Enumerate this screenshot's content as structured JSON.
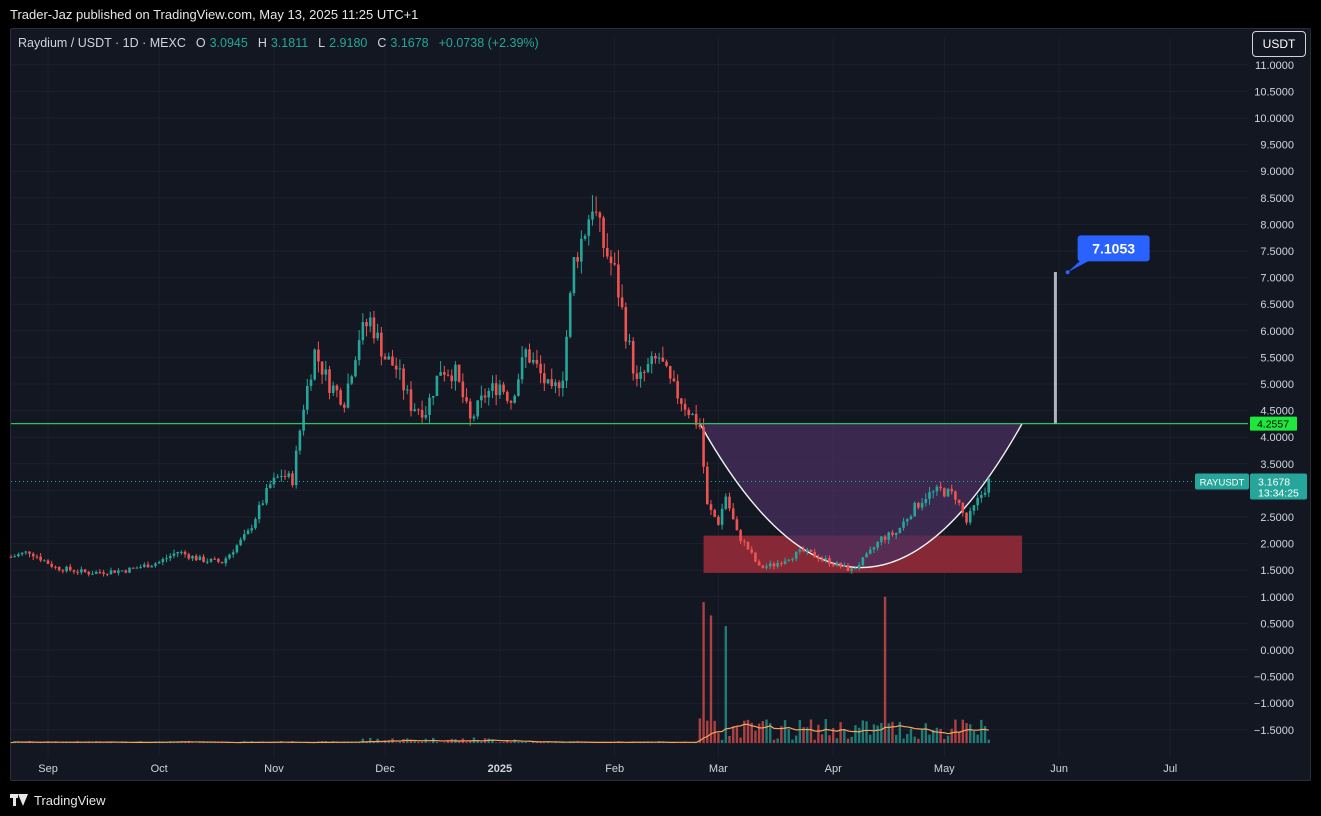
{
  "header": {
    "published": "Trader-Jaz published on TradingView.com, May 13, 2025 11:25 UTC+1"
  },
  "legend": {
    "symbol": "Raydium / USDT · 1D · MEXC",
    "o_label": "O",
    "o_value": "3.0945",
    "h_label": "H",
    "h_value": "3.1811",
    "l_label": "L",
    "l_value": "2.9180",
    "c_label": "C",
    "c_value": "3.1678",
    "change": "+0.0738 (+2.39%)"
  },
  "unit_button": "USDT",
  "footer": {
    "brand": "TradingView"
  },
  "colors": {
    "background": "#131722",
    "up": "#26a69a",
    "down": "#ef5350",
    "support_line": "#22c55e",
    "target_label": "#2962ff",
    "zone_fill": "#9b2c3a",
    "cup_fill": "#4a2f5e",
    "ma_line": "#f7a35c"
  },
  "chart_data": {
    "type": "candlestick",
    "title": "",
    "xlabel": "",
    "ylabel": "",
    "ylim": [
      -1.9,
      11.2
    ],
    "y_ticks": [
      "11.0000",
      "10.5000",
      "10.0000",
      "9.5000",
      "9.0000",
      "8.5000",
      "8.0000",
      "7.5000",
      "7.0000",
      "6.5000",
      "6.0000",
      "5.5000",
      "5.0000",
      "4.5000",
      "4.0000",
      "3.5000",
      "3.0000",
      "2.5000",
      "2.0000",
      "1.5000",
      "1.0000",
      "0.5000",
      "0.0000",
      "−0.5000",
      "−1.0000",
      "−1.5000"
    ],
    "x_ticks": [
      {
        "label": "Sep",
        "date": "2024-09-01",
        "bold": false
      },
      {
        "label": "Oct",
        "date": "2024-10-01",
        "bold": false
      },
      {
        "label": "Nov",
        "date": "2024-11-01",
        "bold": false
      },
      {
        "label": "Dec",
        "date": "2024-12-01",
        "bold": false
      },
      {
        "label": "2025",
        "date": "2025-01-01",
        "bold": true
      },
      {
        "label": "Feb",
        "date": "2025-02-01",
        "bold": false
      },
      {
        "label": "Mar",
        "date": "2025-03-01",
        "bold": false
      },
      {
        "label": "Apr",
        "date": "2025-04-01",
        "bold": false
      },
      {
        "label": "May",
        "date": "2025-05-01",
        "bold": false
      },
      {
        "label": "Jun",
        "date": "2025-06-01",
        "bold": false
      },
      {
        "label": "Jul",
        "date": "2025-07-01",
        "bold": false
      }
    ],
    "x_range": [
      "2024-08-22",
      "2025-07-22"
    ],
    "price_path": [
      [
        "2024-08-22",
        1.75
      ],
      [
        "2024-08-27",
        1.85
      ],
      [
        "2024-09-03",
        1.55
      ],
      [
        "2024-09-12",
        1.45
      ],
      [
        "2024-09-22",
        1.5
      ],
      [
        "2024-10-01",
        1.65
      ],
      [
        "2024-10-06",
        1.85
      ],
      [
        "2024-10-12",
        1.7
      ],
      [
        "2024-10-18",
        1.65
      ],
      [
        "2024-10-25",
        2.2
      ],
      [
        "2024-10-31",
        3.1
      ],
      [
        "2024-11-03",
        3.3
      ],
      [
        "2024-11-06",
        3.2
      ],
      [
        "2024-11-09",
        4.6
      ],
      [
        "2024-11-12",
        5.6
      ],
      [
        "2024-11-16",
        5.0
      ],
      [
        "2024-11-20",
        4.7
      ],
      [
        "2024-11-24",
        5.9
      ],
      [
        "2024-11-27",
        6.2
      ],
      [
        "2024-12-01",
        5.5
      ],
      [
        "2024-12-04",
        5.3
      ],
      [
        "2024-12-08",
        4.6
      ],
      [
        "2024-12-12",
        4.5
      ],
      [
        "2024-12-16",
        5.3
      ],
      [
        "2024-12-20",
        5.2
      ],
      [
        "2024-12-24",
        4.3
      ],
      [
        "2024-12-28",
        4.8
      ],
      [
        "2025-01-01",
        5.0
      ],
      [
        "2025-01-04",
        4.7
      ],
      [
        "2025-01-08",
        5.6
      ],
      [
        "2025-01-11",
        5.3
      ],
      [
        "2025-01-15",
        4.8
      ],
      [
        "2025-01-18",
        5.2
      ],
      [
        "2025-01-21",
        7.3
      ],
      [
        "2025-01-24",
        7.9
      ],
      [
        "2025-01-26",
        8.4
      ],
      [
        "2025-01-29",
        7.6
      ],
      [
        "2025-02-01",
        7.1
      ],
      [
        "2025-02-04",
        6.0
      ],
      [
        "2025-02-07",
        5.0
      ],
      [
        "2025-02-10",
        5.3
      ],
      [
        "2025-02-13",
        5.5
      ],
      [
        "2025-02-16",
        5.0
      ],
      [
        "2025-02-19",
        4.7
      ],
      [
        "2025-02-22",
        4.4
      ],
      [
        "2025-02-24",
        4.2
      ],
      [
        "2025-02-26",
        2.7
      ],
      [
        "2025-03-01",
        2.4
      ],
      [
        "2025-03-03",
        2.9
      ],
      [
        "2025-03-06",
        2.2
      ],
      [
        "2025-03-09",
        1.9
      ],
      [
        "2025-03-12",
        1.55
      ],
      [
        "2025-03-16",
        1.6
      ],
      [
        "2025-03-20",
        1.75
      ],
      [
        "2025-03-24",
        1.85
      ],
      [
        "2025-03-28",
        1.75
      ],
      [
        "2025-04-02",
        1.6
      ],
      [
        "2025-04-06",
        1.5
      ],
      [
        "2025-04-10",
        1.75
      ],
      [
        "2025-04-14",
        2.1
      ],
      [
        "2025-04-18",
        2.2
      ],
      [
        "2025-04-22",
        2.6
      ],
      [
        "2025-04-26",
        2.9
      ],
      [
        "2025-04-30",
        3.0
      ],
      [
        "2025-05-04",
        2.9
      ],
      [
        "2025-05-07",
        2.4
      ],
      [
        "2025-05-10",
        2.8
      ],
      [
        "2025-05-13",
        3.17
      ]
    ],
    "annotations": {
      "support_line": 4.2557,
      "support_label": "4.2557",
      "target": 7.1053,
      "target_label": "7.1053",
      "target_bar_date": "2025-05-31",
      "target_label_date": "2025-06-06",
      "demand_zone": {
        "y_top": 2.15,
        "y_bottom": 1.45,
        "x_start": "2025-02-25",
        "x_end": "2025-05-22"
      },
      "cup": {
        "x_start": "2025-02-24",
        "x_end": "2025-05-22",
        "rim": 4.2557,
        "bottom": 1.55
      },
      "current_price_label": "RAYUSDT",
      "current_price": "3.1678",
      "countdown": "13:34:25"
    },
    "volume": {
      "baseline_region": [
        -1.75,
        -0.8
      ],
      "spikes": [
        {
          "date": "2025-02-25",
          "level": 0.9
        },
        {
          "date": "2025-02-27",
          "level": 0.65
        },
        {
          "date": "2025-03-03",
          "level": 0.45
        },
        {
          "date": "2025-04-15",
          "level": 1.0
        }
      ]
    },
    "grid": true,
    "legend_position": "top-left"
  }
}
